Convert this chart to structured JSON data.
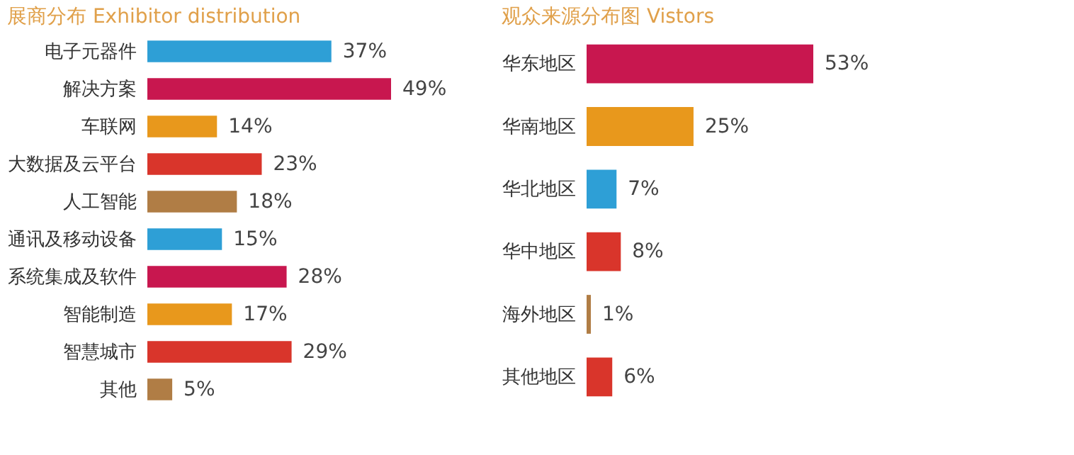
{
  "chart_data": [
    {
      "type": "bar",
      "orientation": "horizontal",
      "title": "展商分布 Exhibitor distribution",
      "categories": [
        "电子元器件",
        "解决方案",
        "车联网",
        "大数据及云平台",
        "人工智能",
        "通讯及移动设备",
        "系统集成及软件",
        "智能制造",
        "智慧城市",
        "其他"
      ],
      "values": [
        37,
        49,
        14,
        23,
        18,
        15,
        28,
        17,
        29,
        5
      ],
      "value_labels": [
        "37%",
        "49%",
        "14%",
        "23%",
        "18%",
        "15%",
        "28%",
        "17%",
        "29%",
        "5%"
      ],
      "colors": [
        "#2e9fd6",
        "#c8174f",
        "#e8981c",
        "#d9352b",
        "#b07d45",
        "#2e9fd6",
        "#c8174f",
        "#e8981c",
        "#d9352b",
        "#b07d45"
      ]
    },
    {
      "type": "bar",
      "orientation": "horizontal",
      "title": "观众来源分布图  Vistors",
      "categories": [
        "华东地区",
        "华南地区",
        "华北地区",
        "华中地区",
        "海外地区",
        "其他地区"
      ],
      "values": [
        53,
        25,
        7,
        8,
        1,
        6
      ],
      "value_labels": [
        "53%",
        "25%",
        "7%",
        "8%",
        "1%",
        "6%"
      ],
      "colors": [
        "#c8174f",
        "#e8981c",
        "#2e9fd6",
        "#d9352b",
        "#b07d45",
        "#d9352b"
      ]
    }
  ]
}
